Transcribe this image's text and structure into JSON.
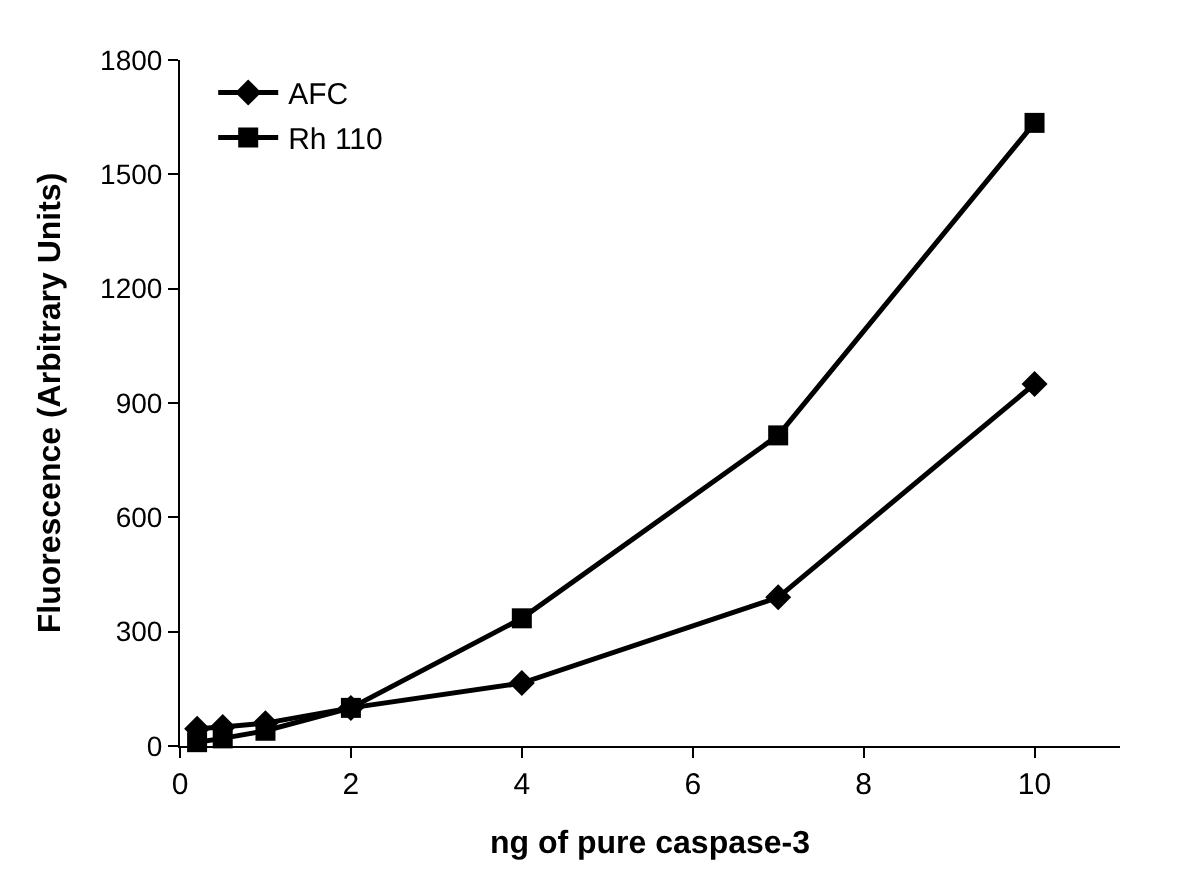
{
  "chart_data": {
    "type": "line",
    "xlabel": "ng of pure caspase-3",
    "ylabel": "Fluorescence (Arbitrary Units)",
    "x": [
      0.2,
      0.5,
      1,
      2,
      4,
      7,
      10
    ],
    "series": [
      {
        "name": "AFC",
        "color": "#000000",
        "marker": "diamond",
        "values": [
          45,
          50,
          60,
          100,
          165,
          390,
          950
        ]
      },
      {
        "name": "Rh 110",
        "color": "#000000",
        "marker": "square",
        "values": [
          10,
          20,
          40,
          100,
          335,
          815,
          1635
        ]
      }
    ],
    "xlim": [
      0,
      11
    ],
    "xticks": [
      0,
      2,
      4,
      6,
      8,
      10
    ],
    "ylim": [
      0,
      1800
    ],
    "yticks": [
      0,
      300,
      600,
      900,
      1200,
      1500,
      1800
    ],
    "grid": false,
    "legend": "top left",
    "line_style": "solid"
  }
}
